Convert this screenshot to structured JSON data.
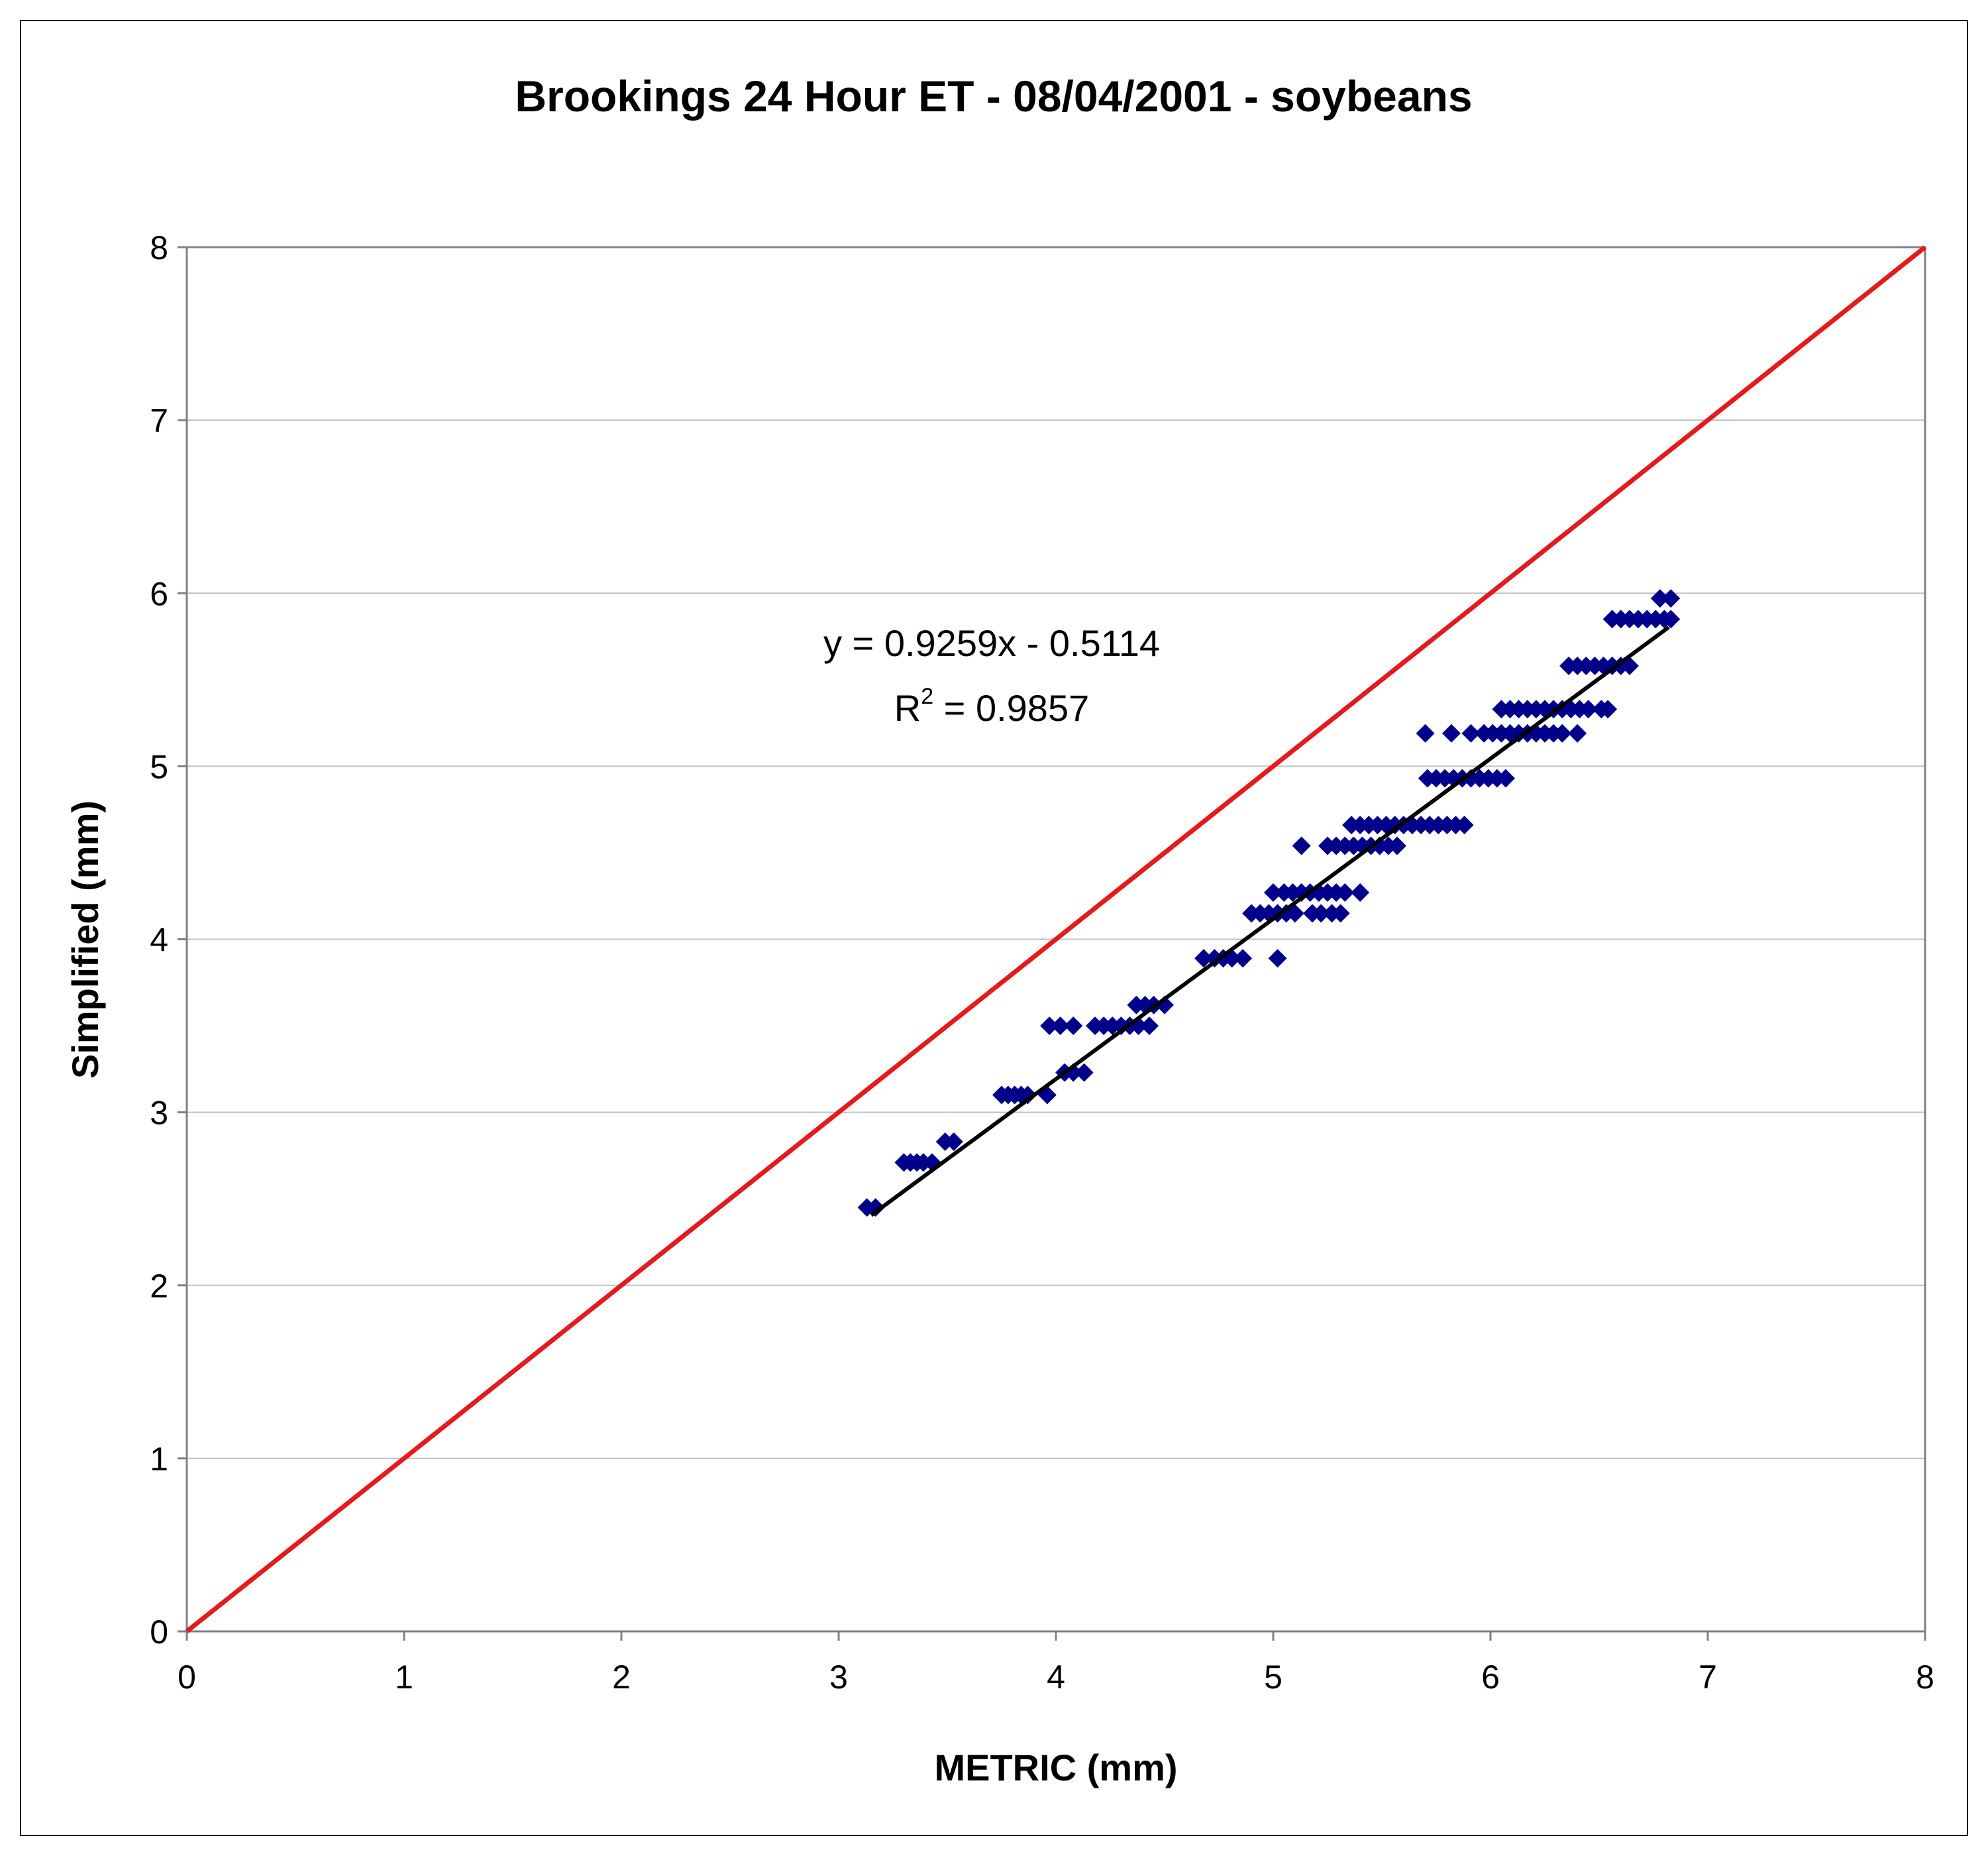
{
  "chart_data": {
    "type": "scatter",
    "title": "Brookings 24 Hour ET - 08/04/2001 - soybeans",
    "xlabel": "METRIC (mm)",
    "ylabel": "Simplified (mm)",
    "xlim": [
      0,
      8
    ],
    "ylim": [
      0,
      8
    ],
    "xticks": [
      "0",
      "1",
      "2",
      "3",
      "4",
      "5",
      "6",
      "7",
      "8"
    ],
    "yticks": [
      "0",
      "1",
      "2",
      "3",
      "4",
      "5",
      "6",
      "7",
      "8"
    ],
    "grid": "horizontal",
    "colors": {
      "points": "#00008B",
      "trendline": "#000000",
      "one_to_one": "#E41A1C",
      "grid": "#C0C0C0"
    },
    "annotations": {
      "equation": "y = 0.9259x - 0.5114",
      "r2_label": "R",
      "r2_sup": "2",
      "r2_value": " = 0.9857"
    },
    "one_to_one_line": {
      "x": [
        0,
        8
      ],
      "y": [
        0,
        8
      ]
    },
    "trendline": {
      "slope": 0.9259,
      "intercept": -0.5114,
      "x_range": [
        3.15,
        6.82
      ]
    },
    "series": [
      {
        "marker": "diamond",
        "points": [
          [
            3.13,
            2.45
          ],
          [
            3.17,
            2.45
          ],
          [
            3.3,
            2.71
          ],
          [
            3.33,
            2.71
          ],
          [
            3.36,
            2.71
          ],
          [
            3.39,
            2.71
          ],
          [
            3.43,
            2.71
          ],
          [
            3.49,
            2.83
          ],
          [
            3.53,
            2.83
          ],
          [
            3.75,
            3.1
          ],
          [
            3.78,
            3.1
          ],
          [
            3.81,
            3.1
          ],
          [
            3.84,
            3.1
          ],
          [
            3.87,
            3.1
          ],
          [
            3.96,
            3.1
          ],
          [
            3.97,
            3.5
          ],
          [
            4.02,
            3.5
          ],
          [
            4.08,
            3.5
          ],
          [
            4.04,
            3.23
          ],
          [
            4.08,
            3.23
          ],
          [
            4.13,
            3.23
          ],
          [
            4.18,
            3.5
          ],
          [
            4.22,
            3.5
          ],
          [
            4.26,
            3.5
          ],
          [
            4.3,
            3.5
          ],
          [
            4.34,
            3.5
          ],
          [
            4.38,
            3.5
          ],
          [
            4.43,
            3.5
          ],
          [
            4.37,
            3.62
          ],
          [
            4.41,
            3.62
          ],
          [
            4.45,
            3.62
          ],
          [
            4.5,
            3.62
          ],
          [
            4.68,
            3.89
          ],
          [
            4.73,
            3.89
          ],
          [
            4.77,
            3.89
          ],
          [
            4.81,
            3.89
          ],
          [
            4.86,
            3.89
          ],
          [
            5.02,
            3.89
          ],
          [
            4.9,
            4.15
          ],
          [
            4.94,
            4.15
          ],
          [
            4.98,
            4.15
          ],
          [
            5.02,
            4.15
          ],
          [
            5.06,
            4.15
          ],
          [
            5.1,
            4.15
          ],
          [
            5.18,
            4.15
          ],
          [
            5.22,
            4.15
          ],
          [
            5.27,
            4.15
          ],
          [
            5.31,
            4.15
          ],
          [
            5.0,
            4.27
          ],
          [
            5.05,
            4.27
          ],
          [
            5.09,
            4.27
          ],
          [
            5.13,
            4.27
          ],
          [
            5.17,
            4.27
          ],
          [
            5.21,
            4.27
          ],
          [
            5.25,
            4.27
          ],
          [
            5.29,
            4.27
          ],
          [
            5.33,
            4.27
          ],
          [
            5.4,
            4.27
          ],
          [
            5.13,
            4.54
          ],
          [
            5.25,
            4.54
          ],
          [
            5.29,
            4.54
          ],
          [
            5.33,
            4.54
          ],
          [
            5.37,
            4.54
          ],
          [
            5.41,
            4.54
          ],
          [
            5.45,
            4.54
          ],
          [
            5.49,
            4.54
          ],
          [
            5.53,
            4.54
          ],
          [
            5.57,
            4.54
          ],
          [
            5.36,
            4.66
          ],
          [
            5.4,
            4.66
          ],
          [
            5.44,
            4.66
          ],
          [
            5.48,
            4.66
          ],
          [
            5.52,
            4.66
          ],
          [
            5.56,
            4.66
          ],
          [
            5.6,
            4.66
          ],
          [
            5.64,
            4.66
          ],
          [
            5.68,
            4.66
          ],
          [
            5.72,
            4.66
          ],
          [
            5.76,
            4.66
          ],
          [
            5.8,
            4.66
          ],
          [
            5.84,
            4.66
          ],
          [
            5.88,
            4.66
          ],
          [
            5.71,
            4.93
          ],
          [
            5.75,
            4.93
          ],
          [
            5.79,
            4.93
          ],
          [
            5.83,
            4.93
          ],
          [
            5.87,
            4.93
          ],
          [
            5.91,
            4.93
          ],
          [
            5.95,
            4.93
          ],
          [
            5.99,
            4.93
          ],
          [
            6.03,
            4.93
          ],
          [
            6.07,
            4.93
          ],
          [
            5.7,
            5.19
          ],
          [
            5.82,
            5.19
          ],
          [
            5.91,
            5.19
          ],
          [
            5.97,
            5.19
          ],
          [
            6.01,
            5.19
          ],
          [
            6.05,
            5.19
          ],
          [
            6.09,
            5.19
          ],
          [
            6.13,
            5.19
          ],
          [
            6.17,
            5.19
          ],
          [
            6.21,
            5.19
          ],
          [
            6.25,
            5.19
          ],
          [
            6.29,
            5.19
          ],
          [
            6.33,
            5.19
          ],
          [
            6.4,
            5.19
          ],
          [
            6.05,
            5.33
          ],
          [
            6.09,
            5.33
          ],
          [
            6.13,
            5.33
          ],
          [
            6.17,
            5.33
          ],
          [
            6.21,
            5.33
          ],
          [
            6.25,
            5.33
          ],
          [
            6.29,
            5.33
          ],
          [
            6.33,
            5.33
          ],
          [
            6.37,
            5.33
          ],
          [
            6.41,
            5.33
          ],
          [
            6.45,
            5.33
          ],
          [
            6.51,
            5.33
          ],
          [
            6.54,
            5.33
          ],
          [
            6.36,
            5.58
          ],
          [
            6.4,
            5.58
          ],
          [
            6.44,
            5.58
          ],
          [
            6.48,
            5.58
          ],
          [
            6.52,
            5.58
          ],
          [
            6.56,
            5.58
          ],
          [
            6.6,
            5.58
          ],
          [
            6.64,
            5.58
          ],
          [
            6.56,
            5.85
          ],
          [
            6.6,
            5.85
          ],
          [
            6.64,
            5.85
          ],
          [
            6.68,
            5.85
          ],
          [
            6.72,
            5.85
          ],
          [
            6.76,
            5.85
          ],
          [
            6.8,
            5.85
          ],
          [
            6.83,
            5.85
          ],
          [
            6.78,
            5.97
          ],
          [
            6.83,
            5.97
          ]
        ]
      }
    ]
  }
}
